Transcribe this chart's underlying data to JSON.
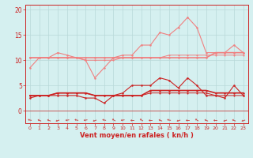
{
  "x": [
    0,
    1,
    2,
    3,
    4,
    5,
    6,
    7,
    8,
    9,
    10,
    11,
    12,
    13,
    14,
    15,
    16,
    17,
    18,
    19,
    20,
    21,
    22,
    23
  ],
  "line1_y": [
    8.5,
    10.5,
    10.5,
    11.5,
    11.0,
    10.5,
    10.0,
    6.5,
    8.5,
    10.5,
    11.0,
    11.0,
    13.0,
    13.0,
    15.5,
    15.0,
    16.5,
    18.5,
    16.5,
    11.5,
    11.5,
    11.5,
    13.0,
    11.5
  ],
  "line2_y": [
    10.5,
    10.5,
    10.5,
    10.5,
    10.5,
    10.5,
    10.5,
    10.5,
    10.5,
    10.5,
    10.5,
    10.5,
    10.5,
    10.5,
    10.5,
    10.5,
    10.5,
    10.5,
    10.5,
    10.5,
    11.5,
    11.5,
    11.5,
    11.5
  ],
  "line3_y": [
    10.5,
    10.5,
    10.5,
    10.5,
    10.5,
    10.5,
    10.0,
    10.0,
    10.0,
    10.0,
    10.5,
    10.5,
    10.5,
    10.5,
    10.5,
    11.0,
    11.0,
    11.0,
    11.0,
    11.0,
    11.0,
    11.0,
    11.0,
    11.0
  ],
  "line4_y": [
    2.5,
    3.0,
    3.0,
    3.0,
    3.0,
    3.0,
    2.5,
    2.5,
    1.5,
    3.0,
    3.5,
    5.0,
    5.0,
    5.0,
    6.5,
    6.0,
    4.5,
    6.5,
    5.0,
    3.0,
    3.0,
    2.5,
    5.0,
    3.0
  ],
  "line5_y": [
    3.0,
    3.0,
    3.0,
    3.5,
    3.5,
    3.5,
    3.5,
    3.0,
    3.0,
    3.0,
    3.0,
    3.0,
    3.0,
    4.0,
    4.0,
    4.0,
    4.0,
    4.0,
    4.0,
    4.0,
    3.5,
    3.5,
    3.5,
    3.5
  ],
  "line6_y": [
    3.0,
    3.0,
    3.0,
    3.5,
    3.5,
    3.5,
    3.5,
    3.0,
    3.0,
    3.0,
    3.0,
    3.0,
    3.0,
    3.5,
    3.5,
    3.5,
    3.5,
    3.5,
    3.5,
    3.5,
    3.0,
    3.0,
    3.0,
    3.0
  ],
  "color_light": "#f08080",
  "color_dark": "#cc2222",
  "color_bg": "#d5f0f0",
  "color_grid": "#b8d8d8",
  "xlabel": "Vent moyen/en rafales ( kn/h )",
  "yticks": [
    0,
    5,
    10,
    15,
    20
  ],
  "ylim": [
    -2.5,
    21
  ],
  "xlim": [
    -0.5,
    23.5
  ],
  "xtick_labels": [
    "0",
    "1",
    "2",
    "3",
    "4",
    "5",
    "6",
    "7",
    "8",
    "9",
    "10",
    "11",
    "12",
    "13",
    "14",
    "15",
    "16",
    "17",
    "18",
    "19",
    "20",
    "21",
    "22",
    "23"
  ]
}
